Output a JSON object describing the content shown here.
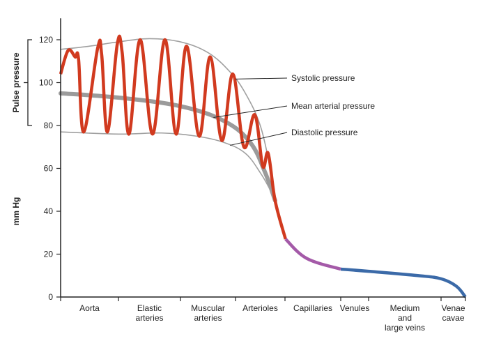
{
  "chart_data": {
    "type": "line",
    "title": "",
    "ylabel": "mm Hg",
    "bracket_label": "Pulse pressure",
    "bracket_range": [
      80,
      120
    ],
    "ylim": [
      0,
      130
    ],
    "yticks": [
      0,
      20,
      40,
      60,
      80,
      100,
      120
    ],
    "grid": false,
    "categories": [
      "Aorta",
      [
        "Elastic",
        "arteries"
      ],
      [
        "Muscular",
        "arteries"
      ],
      "Arterioles",
      "Capillaries",
      "Venules",
      [
        "Medium",
        "and",
        "large veins"
      ],
      [
        "Venae",
        "cavae"
      ]
    ],
    "annotations": [
      {
        "text": "Systolic pressure",
        "series": "systolic",
        "at": 3.0
      },
      {
        "text": "Mean arterial pressure",
        "series": "mean",
        "at": 2.6
      },
      {
        "text": "Diastolic pressure",
        "series": "diastolic",
        "at": 2.9
      }
    ],
    "colors": {
      "arterial": "#d13a1f",
      "capillary": "#a45aa8",
      "venous": "#3b6aa8",
      "envelope": "#a0a0a0",
      "mean": "#8a8a8a"
    },
    "series": {
      "systolic": [
        [
          0,
          115.5
        ],
        [
          0.5,
          117
        ],
        [
          1.0,
          119
        ],
        [
          1.5,
          120.5
        ],
        [
          2.0,
          119
        ],
        [
          2.5,
          114
        ],
        [
          2.9,
          105
        ],
        [
          3.2,
          95
        ],
        [
          3.5,
          80
        ],
        [
          3.7,
          60
        ],
        [
          3.8,
          45
        ]
      ],
      "diastolic": [
        [
          0,
          77
        ],
        [
          1.0,
          76
        ],
        [
          1.7,
          76.5
        ],
        [
          2.3,
          75
        ],
        [
          2.8,
          72
        ],
        [
          3.2,
          67
        ],
        [
          3.5,
          58
        ],
        [
          3.7,
          50
        ],
        [
          3.8,
          45
        ]
      ],
      "mean": [
        [
          0,
          95
        ],
        [
          1.0,
          93
        ],
        [
          2.0,
          89
        ],
        [
          2.8,
          82
        ],
        [
          3.3,
          72
        ],
        [
          3.6,
          58
        ],
        [
          3.8,
          45
        ]
      ],
      "pressure_arterial": [
        [
          0,
          104
        ],
        [
          0.13,
          115
        ],
        [
          0.25,
          112
        ],
        [
          0.31,
          111
        ],
        [
          0.4,
          77
        ],
        [
          0.64,
          116
        ],
        [
          0.71,
          113
        ],
        [
          0.81,
          77
        ],
        [
          0.98,
          118
        ],
        [
          1.06,
          114
        ],
        [
          1.17,
          76
        ],
        [
          1.35,
          120
        ],
        [
          1.55,
          76
        ],
        [
          1.75,
          120
        ],
        [
          1.93,
          76
        ],
        [
          2.11,
          117
        ],
        [
          2.34,
          75
        ],
        [
          2.54,
          112
        ],
        [
          2.75,
          73
        ],
        [
          2.95,
          104
        ],
        [
          3.17,
          70
        ],
        [
          3.39,
          85
        ],
        [
          3.55,
          61
        ],
        [
          3.66,
          67
        ],
        [
          3.8,
          45
        ],
        [
          4.01,
          27
        ]
      ],
      "pressure_capillary": [
        [
          4.01,
          27
        ],
        [
          4.39,
          18
        ],
        [
          5.0,
          13
        ]
      ],
      "pressure_venous": [
        [
          5.0,
          13
        ],
        [
          6.0,
          12
        ],
        [
          6.68,
          10
        ],
        [
          7.0,
          8.5
        ],
        [
          7.63,
          5
        ],
        [
          8.0,
          0
        ]
      ]
    }
  }
}
